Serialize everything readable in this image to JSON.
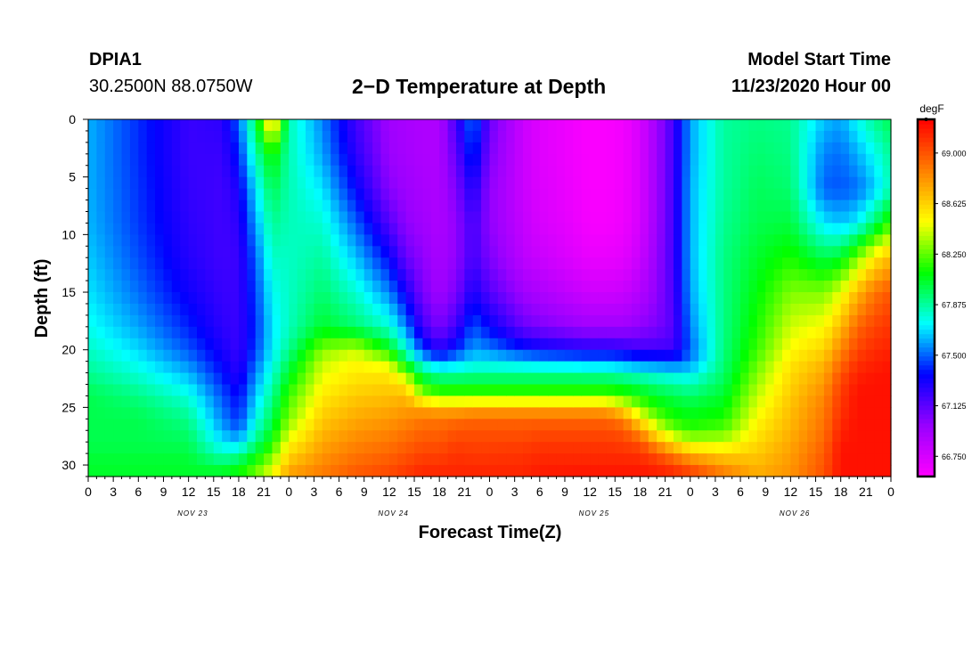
{
  "header": {
    "station": "DPIA1",
    "location": "30.2500N 88.0750W",
    "title": "2−D Temperature at Depth",
    "start_label": "Model Start Time",
    "start_value": "11/23/2020 Hour 00"
  },
  "chart_data": {
    "type": "heatmap",
    "title": "2−D Temperature at Depth",
    "xlabel": "Forecast Time(Z)",
    "ylabel": "Depth (ft)",
    "x_start_label": "11/23/2020 00Z",
    "x_range_hours": [
      0,
      96
    ],
    "x_tick_labels": [
      "0",
      "3",
      "6",
      "9",
      "12",
      "15",
      "18",
      "21",
      "0",
      "3",
      "6",
      "9",
      "12",
      "15",
      "18",
      "21",
      "0",
      "3",
      "6",
      "9",
      "12",
      "15",
      "18",
      "21",
      "0",
      "3",
      "6",
      "9",
      "12",
      "15",
      "18",
      "21",
      "0"
    ],
    "date_labels": [
      "NOV 23",
      "NOV 24",
      "NOV 25",
      "NOV 26"
    ],
    "y_ticks": [
      0,
      5,
      10,
      15,
      20,
      25,
      30
    ],
    "ylim": [
      0,
      31
    ],
    "y_inverted": true,
    "colorbar": {
      "unit": "degF",
      "range": [
        66.6,
        69.25
      ],
      "ticks": [
        "66.750",
        "67.125",
        "67.500",
        "67.875",
        "68.250",
        "68.625",
        "69.000"
      ],
      "colors": [
        "#ff00ff",
        "#9900ff",
        "#0000ff",
        "#00ffff",
        "#00ff00",
        "#ffff00",
        "#ff8000",
        "#ff0000"
      ]
    },
    "profile_hours": [
      0,
      6,
      12,
      16,
      18,
      20,
      22,
      24,
      28,
      32,
      36,
      38,
      40,
      42,
      44,
      46,
      48,
      52,
      54,
      58,
      60,
      62,
      64,
      66,
      68,
      70,
      72,
      76,
      80,
      84,
      88,
      90,
      92,
      94,
      96
    ],
    "profile_depths_ft": [
      0,
      3,
      6,
      9,
      12,
      15,
      18,
      20,
      21,
      22,
      23,
      24,
      25,
      26,
      27,
      28,
      29,
      30,
      31
    ],
    "temperature_profiles_degF": [
      [
        67.62,
        67.62,
        67.62,
        67.63,
        67.66,
        67.7,
        67.76,
        67.82,
        67.86,
        67.9,
        67.95,
        68.0,
        68.0,
        68.0,
        68.0,
        68.0,
        68.02,
        68.05,
        68.05
      ],
      [
        67.42,
        67.42,
        67.43,
        67.44,
        67.47,
        67.52,
        67.6,
        67.68,
        67.73,
        67.79,
        67.85,
        67.92,
        67.96,
        68.0,
        68.0,
        68.0,
        68.02,
        68.05,
        68.05
      ],
      [
        67.22,
        67.22,
        67.23,
        67.25,
        67.27,
        67.32,
        67.4,
        67.48,
        67.55,
        67.62,
        67.7,
        67.78,
        67.85,
        67.9,
        67.95,
        67.98,
        68.02,
        68.05,
        68.05
      ],
      [
        67.25,
        67.22,
        67.2,
        67.2,
        67.2,
        67.22,
        67.25,
        67.3,
        67.34,
        67.38,
        67.43,
        67.48,
        67.52,
        67.56,
        67.62,
        67.7,
        67.82,
        67.98,
        68.1
      ],
      [
        67.5,
        67.4,
        67.3,
        67.25,
        67.22,
        67.22,
        67.22,
        67.22,
        67.24,
        67.26,
        67.3,
        67.35,
        67.38,
        67.42,
        67.5,
        67.65,
        67.85,
        68.05,
        68.15
      ],
      [
        68.0,
        67.85,
        67.7,
        67.6,
        67.5,
        67.45,
        67.42,
        67.45,
        67.5,
        67.55,
        67.6,
        67.65,
        67.7,
        67.75,
        67.82,
        67.92,
        68.05,
        68.2,
        68.3
      ],
      [
        68.7,
        68.15,
        68.0,
        67.9,
        67.82,
        67.75,
        67.7,
        67.72,
        67.75,
        67.8,
        67.85,
        67.9,
        67.95,
        68.0,
        68.05,
        68.15,
        68.25,
        68.4,
        68.5
      ],
      [
        67.85,
        67.85,
        67.85,
        67.84,
        67.82,
        67.82,
        67.83,
        67.9,
        67.98,
        68.05,
        68.12,
        68.2,
        68.25,
        68.3,
        68.4,
        68.5,
        68.6,
        68.7,
        68.8
      ],
      [
        67.55,
        67.6,
        67.7,
        67.8,
        67.88,
        67.95,
        68.05,
        68.3,
        68.4,
        68.45,
        68.5,
        68.55,
        68.6,
        68.65,
        68.7,
        68.75,
        68.8,
        68.85,
        68.9
      ],
      [
        67.2,
        67.25,
        67.35,
        67.5,
        67.65,
        67.8,
        67.95,
        68.4,
        68.5,
        68.55,
        68.6,
        68.65,
        68.7,
        68.75,
        68.8,
        68.85,
        68.9,
        68.95,
        69.0
      ],
      [
        66.95,
        66.97,
        67.02,
        67.15,
        67.35,
        67.55,
        67.8,
        68.1,
        68.4,
        68.55,
        68.62,
        68.68,
        68.74,
        68.8,
        68.85,
        68.9,
        68.95,
        69.0,
        69.05
      ],
      [
        66.92,
        66.93,
        66.96,
        67.0,
        67.1,
        67.3,
        67.55,
        67.8,
        68.0,
        68.3,
        68.55,
        68.7,
        68.78,
        68.84,
        68.9,
        68.95,
        69.0,
        69.05,
        69.1
      ],
      [
        66.9,
        66.9,
        66.92,
        66.95,
        67.0,
        67.05,
        67.2,
        67.45,
        67.7,
        67.95,
        68.15,
        68.35,
        68.75,
        68.9,
        68.95,
        69.0,
        69.05,
        69.1,
        69.15
      ],
      [
        66.9,
        66.9,
        66.9,
        66.9,
        66.92,
        66.95,
        67.05,
        67.25,
        67.55,
        67.85,
        68.05,
        68.25,
        68.7,
        68.9,
        68.95,
        69.0,
        69.05,
        69.1,
        69.15
      ],
      [
        67.2,
        67.12,
        67.05,
        67.0,
        67.0,
        67.05,
        67.2,
        67.4,
        67.62,
        67.85,
        68.05,
        68.25,
        68.7,
        68.92,
        69.0,
        69.05,
        69.1,
        69.12,
        69.15
      ],
      [
        67.55,
        67.45,
        67.3,
        67.2,
        67.2,
        67.3,
        67.48,
        67.6,
        67.7,
        67.88,
        68.05,
        68.25,
        68.72,
        68.95,
        69.0,
        69.05,
        69.08,
        69.12,
        69.15
      ],
      [
        67.1,
        67.05,
        67.0,
        67.0,
        67.05,
        67.15,
        67.35,
        67.55,
        67.7,
        67.88,
        68.05,
        68.25,
        68.72,
        68.95,
        69.0,
        69.05,
        69.08,
        69.12,
        69.15
      ],
      [
        66.8,
        66.8,
        66.8,
        66.82,
        66.85,
        66.95,
        67.1,
        67.4,
        67.65,
        67.88,
        68.05,
        68.25,
        68.72,
        68.95,
        69.0,
        69.05,
        69.1,
        69.12,
        69.15
      ],
      [
        66.72,
        66.72,
        66.73,
        66.75,
        66.8,
        66.9,
        67.05,
        67.35,
        67.62,
        67.88,
        68.05,
        68.25,
        68.72,
        68.95,
        69.02,
        69.08,
        69.12,
        69.15,
        69.18
      ],
      [
        66.65,
        66.65,
        66.66,
        66.68,
        66.72,
        66.82,
        66.98,
        67.3,
        67.6,
        67.88,
        68.05,
        68.25,
        68.72,
        68.95,
        69.02,
        69.08,
        69.12,
        69.15,
        69.2
      ],
      [
        66.62,
        66.62,
        66.62,
        66.63,
        66.68,
        66.78,
        66.95,
        67.28,
        67.58,
        67.86,
        68.05,
        68.25,
        68.72,
        68.95,
        69.02,
        69.08,
        69.12,
        69.15,
        69.2
      ],
      [
        66.62,
        66.62,
        66.62,
        66.63,
        66.68,
        66.78,
        66.95,
        67.28,
        67.58,
        67.86,
        68.05,
        68.25,
        68.7,
        68.95,
        69.02,
        69.08,
        69.12,
        69.15,
        69.2
      ],
      [
        66.65,
        66.65,
        66.65,
        66.66,
        66.7,
        66.8,
        66.95,
        67.25,
        67.55,
        67.82,
        68.02,
        68.2,
        68.55,
        68.85,
        69.0,
        69.05,
        69.12,
        69.15,
        69.2
      ],
      [
        66.75,
        66.75,
        66.75,
        66.76,
        66.8,
        66.88,
        67.0,
        67.2,
        67.5,
        67.78,
        67.98,
        68.12,
        68.3,
        68.55,
        68.8,
        69.0,
        69.1,
        69.15,
        69.2
      ],
      [
        66.95,
        66.95,
        66.95,
        66.96,
        66.98,
        67.0,
        67.05,
        67.2,
        67.48,
        67.75,
        67.92,
        68.05,
        68.15,
        68.3,
        68.5,
        68.75,
        69.0,
        69.12,
        69.18
      ],
      [
        67.2,
        67.2,
        67.2,
        67.2,
        67.2,
        67.18,
        67.15,
        67.2,
        67.45,
        67.72,
        67.88,
        68.0,
        68.08,
        68.15,
        68.3,
        68.55,
        68.85,
        69.05,
        69.15
      ],
      [
        67.6,
        67.6,
        67.62,
        67.62,
        67.62,
        67.6,
        67.55,
        67.5,
        67.55,
        67.7,
        67.85,
        67.95,
        68.05,
        68.1,
        68.2,
        68.4,
        68.7,
        68.95,
        69.1
      ],
      [
        67.88,
        67.88,
        67.88,
        67.9,
        67.92,
        67.92,
        67.92,
        67.93,
        67.94,
        67.96,
        68.0,
        68.05,
        68.1,
        68.15,
        68.25,
        68.4,
        68.6,
        68.8,
        68.9
      ],
      [
        67.92,
        67.95,
        67.98,
        68.0,
        68.05,
        68.1,
        68.15,
        68.2,
        68.25,
        68.3,
        68.35,
        68.4,
        68.45,
        68.5,
        68.55,
        68.6,
        68.65,
        68.7,
        68.75
      ],
      [
        67.9,
        67.92,
        67.95,
        68.02,
        68.15,
        68.3,
        68.42,
        68.5,
        68.55,
        68.6,
        68.62,
        68.65,
        68.68,
        68.7,
        68.72,
        68.75,
        68.78,
        68.8,
        68.82
      ],
      [
        67.65,
        67.55,
        67.5,
        67.7,
        68.0,
        68.3,
        68.5,
        68.62,
        68.7,
        68.75,
        68.8,
        68.85,
        68.88,
        68.9,
        68.92,
        68.95,
        68.98,
        69.0,
        69.02
      ],
      [
        67.6,
        67.52,
        67.48,
        67.65,
        68.05,
        68.45,
        68.7,
        68.85,
        68.92,
        69.0,
        69.05,
        69.08,
        69.1,
        69.12,
        69.15,
        69.18,
        69.2,
        69.2,
        69.2
      ],
      [
        67.75,
        67.62,
        67.52,
        67.72,
        68.3,
        68.7,
        68.95,
        69.05,
        69.1,
        69.15,
        69.18,
        69.2,
        69.2,
        69.2,
        69.2,
        69.2,
        69.2,
        69.2,
        69.2
      ],
      [
        67.9,
        67.75,
        67.65,
        67.95,
        68.55,
        68.9,
        69.05,
        69.12,
        69.15,
        69.18,
        69.2,
        69.2,
        69.2,
        69.2,
        69.2,
        69.2,
        69.2,
        69.2,
        69.2
      ],
      [
        68.0,
        67.9,
        67.85,
        68.2,
        68.7,
        69.0,
        69.1,
        69.15,
        69.18,
        69.2,
        69.2,
        69.2,
        69.2,
        69.2,
        69.2,
        69.2,
        69.2,
        69.2,
        69.2
      ]
    ]
  }
}
